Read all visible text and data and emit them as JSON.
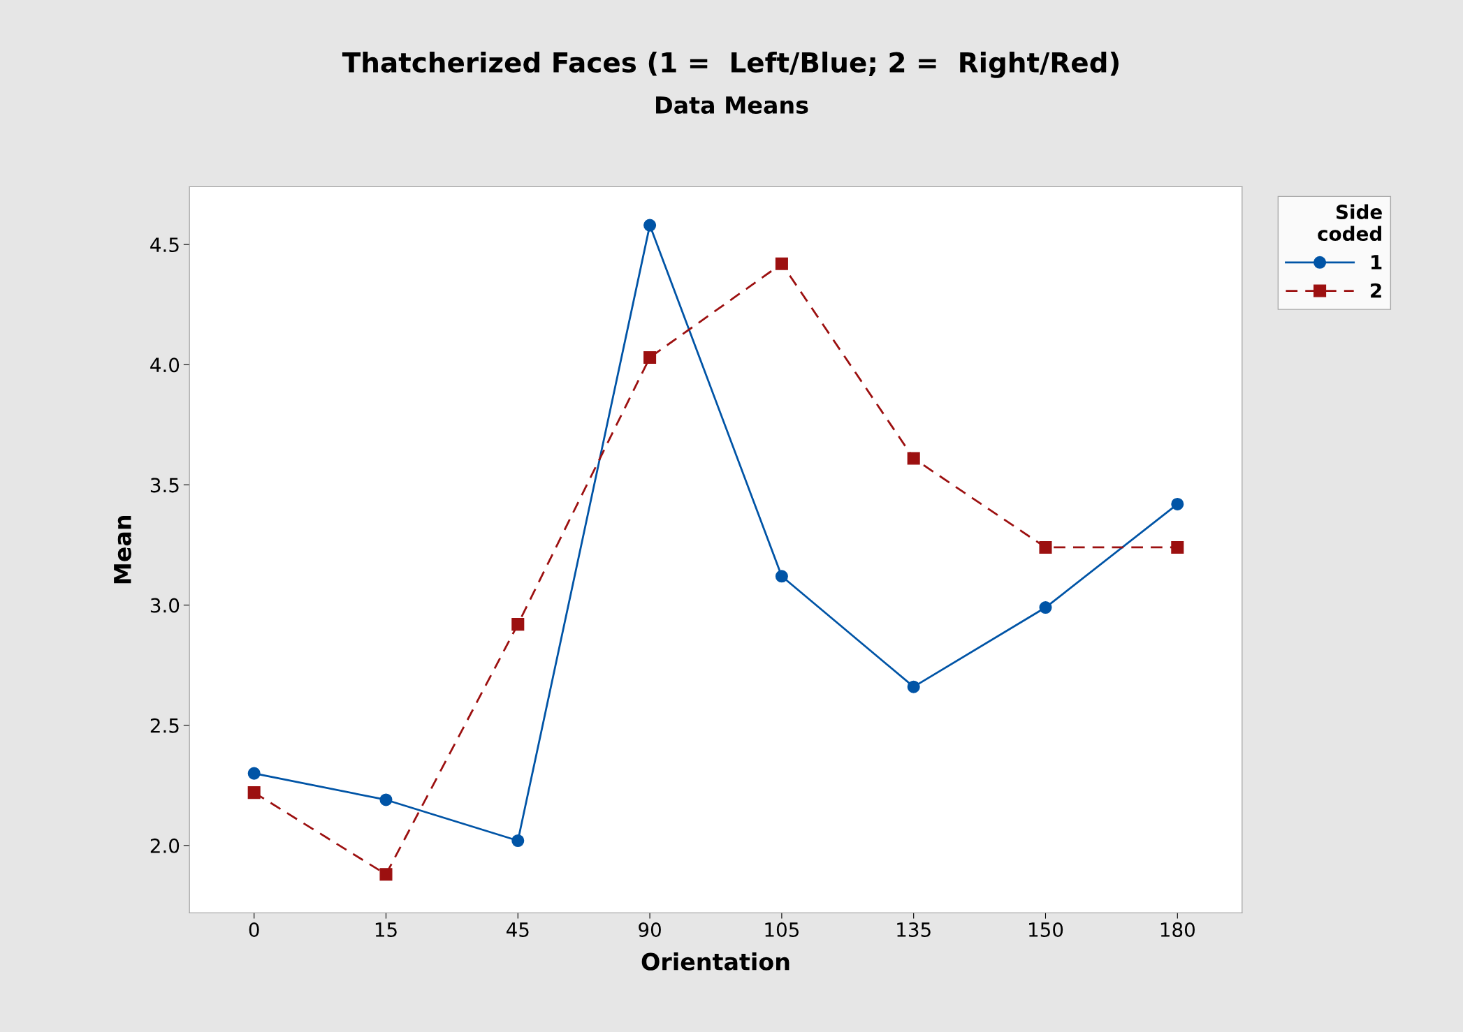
{
  "chart_data": {
    "type": "line",
    "title": "Thatcherized Faces (1 =  Left/Blue; 2 =  Right/Red)",
    "subtitle": "Data Means",
    "xlabel": "Orientation",
    "ylabel": "Mean",
    "legend_title": "Side\ncoded",
    "categories": [
      "0",
      "15",
      "45",
      "90",
      "105",
      "135",
      "150",
      "180"
    ],
    "series": [
      {
        "name": "1",
        "color": "#0054a6",
        "marker": "circle",
        "line_style": "solid",
        "values": [
          2.3,
          2.19,
          2.02,
          4.58,
          3.12,
          2.66,
          2.99,
          3.42
        ]
      },
      {
        "name": "2",
        "color": "#9c1010",
        "marker": "square",
        "line_style": "dashed",
        "values": [
          2.22,
          1.88,
          2.92,
          4.03,
          4.42,
          3.61,
          3.24,
          3.24
        ]
      }
    ],
    "ylim": [
      1.72,
      4.74
    ],
    "yticks": [
      {
        "value": 2.0,
        "label": "2.0"
      },
      {
        "value": 2.5,
        "label": "2.5"
      },
      {
        "value": 3.0,
        "label": "3.0"
      },
      {
        "value": 3.5,
        "label": "3.5"
      },
      {
        "value": 4.0,
        "label": "4.0"
      },
      {
        "value": 4.5,
        "label": "4.5"
      }
    ],
    "grid": false,
    "legend": "right"
  }
}
